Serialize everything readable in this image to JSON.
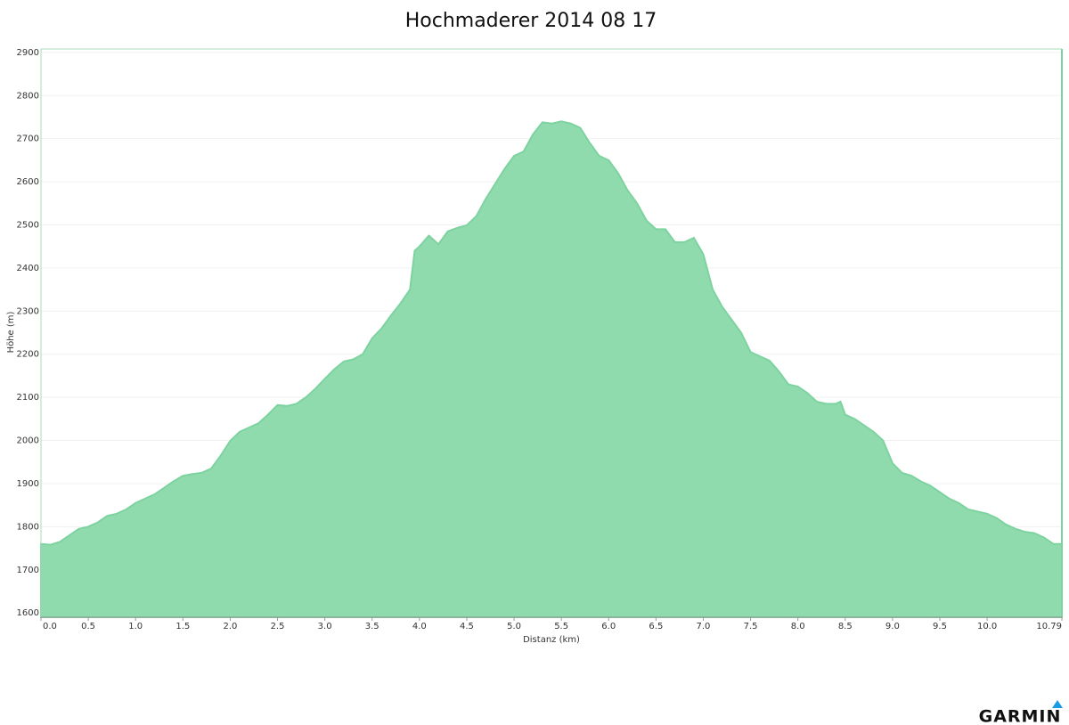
{
  "chart_data": {
    "type": "area",
    "title": "Hochmaderer 2014 08 17",
    "x_label": "Distanz   (km)",
    "y_label": "Höhe (m)",
    "brand": "GARMIN",
    "color": "#90dbae",
    "line_color": "#7dd39f",
    "grid": true,
    "xlim": [
      0,
      10.79
    ],
    "ylim": [
      1590,
      2908
    ],
    "xticks": [
      {
        "value": 0,
        "label": "0.0"
      },
      0.5,
      {
        "value": 1,
        "label": "1.0"
      },
      1.5,
      {
        "value": 2,
        "label": "2.0"
      },
      2.5,
      {
        "value": 3,
        "label": "3.0"
      },
      3.5,
      {
        "value": 4,
        "label": "4.0"
      },
      4.5,
      {
        "value": 5,
        "label": "5.0"
      },
      5.5,
      {
        "value": 6,
        "label": "6.0"
      },
      6.5,
      {
        "value": 7,
        "label": "7.0"
      },
      7.5,
      {
        "value": 8,
        "label": "8.0"
      },
      8.5,
      {
        "value": 9,
        "label": "9.0"
      },
      9.5,
      {
        "value": 10,
        "label": "10.0"
      },
      10.79
    ],
    "yticks": [
      1600,
      1700,
      1800,
      1900,
      2000,
      2100,
      2200,
      2300,
      2400,
      2500,
      2600,
      2700,
      2800,
      2900
    ],
    "x": [
      0,
      0.1,
      0.2,
      0.3,
      0.4,
      0.5,
      0.6,
      0.7,
      0.8,
      0.9,
      1.0,
      1.1,
      1.2,
      1.3,
      1.4,
      1.5,
      1.6,
      1.7,
      1.8,
      1.9,
      2.0,
      2.1,
      2.2,
      2.3,
      2.4,
      2.5,
      2.6,
      2.7,
      2.8,
      2.9,
      3.0,
      3.1,
      3.2,
      3.3,
      3.4,
      3.5,
      3.6,
      3.7,
      3.8,
      3.9,
      3.95,
      4.0,
      4.1,
      4.2,
      4.3,
      4.4,
      4.5,
      4.6,
      4.7,
      4.8,
      4.9,
      5.0,
      5.1,
      5.2,
      5.3,
      5.4,
      5.5,
      5.6,
      5.7,
      5.8,
      5.9,
      6.0,
      6.1,
      6.2,
      6.3,
      6.4,
      6.5,
      6.6,
      6.7,
      6.8,
      6.9,
      7.0,
      7.1,
      7.2,
      7.3,
      7.4,
      7.5,
      7.6,
      7.7,
      7.8,
      7.9,
      8.0,
      8.1,
      8.2,
      8.3,
      8.4,
      8.45,
      8.5,
      8.6,
      8.7,
      8.8,
      8.9,
      9.0,
      9.1,
      9.2,
      9.3,
      9.4,
      9.5,
      9.6,
      9.7,
      9.8,
      9.9,
      10.0,
      10.1,
      10.2,
      10.3,
      10.4,
      10.5,
      10.6,
      10.7,
      10.79
    ],
    "values": [
      1760,
      1758,
      1765,
      1780,
      1795,
      1800,
      1810,
      1825,
      1830,
      1840,
      1855,
      1865,
      1875,
      1890,
      1905,
      1918,
      1922,
      1925,
      1935,
      1965,
      1999,
      2020,
      2030,
      2040,
      2060,
      2082,
      2080,
      2085,
      2100,
      2120,
      2143,
      2165,
      2183,
      2188,
      2200,
      2237,
      2260,
      2290,
      2318,
      2350,
      2440,
      2450,
      2475,
      2455,
      2485,
      2493,
      2499,
      2520,
      2560,
      2595,
      2630,
      2660,
      2670,
      2710,
      2738,
      2735,
      2740,
      2735,
      2725,
      2690,
      2660,
      2650,
      2620,
      2580,
      2550,
      2510,
      2490,
      2490,
      2460,
      2460,
      2470,
      2432,
      2350,
      2310,
      2280,
      2250,
      2205,
      2195,
      2185,
      2160,
      2130,
      2125,
      2110,
      2090,
      2085,
      2085,
      2090,
      2060,
      2050,
      2035,
      2020,
      2000,
      1947,
      1925,
      1918,
      1905,
      1895,
      1880,
      1865,
      1855,
      1840,
      1835,
      1830,
      1820,
      1805,
      1795,
      1788,
      1785,
      1775,
      1760,
      1760
    ]
  }
}
